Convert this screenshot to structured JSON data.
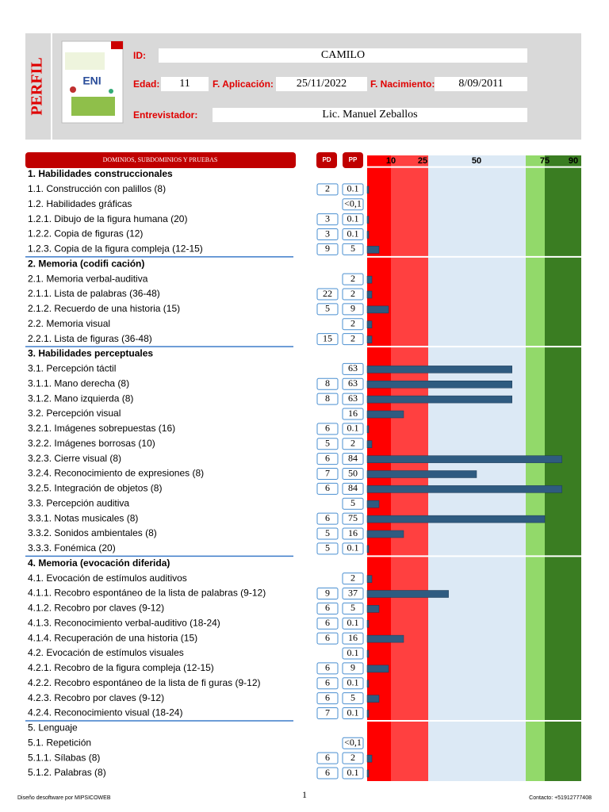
{
  "header": {
    "title": "PERFIL",
    "cover_title": "ENI",
    "id_label": "ID:",
    "id": "CAMILO",
    "age_label": "Edad:",
    "age": 11,
    "application_label": "F. Aplicación:",
    "application_date": "25/11/2022",
    "birth_label": "F. Nacimiento:",
    "birth_date": "8/09/2011",
    "interviewer_label": "Entrevistador:",
    "interviewer": "Lic. Manuel Zeballos"
  },
  "table": {
    "column_label": "DOMINIOS, SUBDOMINIOS Y PRUEBAS",
    "pd_label": "PD",
    "pp_label": "PP",
    "xlim": [
      0,
      100
    ],
    "xticks": [
      10,
      25,
      50,
      75,
      90
    ],
    "bar_color": "#2f5b80",
    "rows": [
      {
        "label": "1. Habilidades construccionales",
        "section": true,
        "bold": true
      },
      {
        "label": "1.1. Construcción con palillos (8)",
        "pd": 2,
        "pp": 0.1
      },
      {
        "label": "1.2. Habilidades gráficas",
        "pp": "<0,1"
      },
      {
        "label": "1.2.1. Dibujo de la figura humana (20)",
        "pd": 3,
        "pp": 0.1
      },
      {
        "label": "1.2.2. Copia de figuras (12)",
        "pd": 3,
        "pp": 0.1
      },
      {
        "label": "1.2.3. Copia de la figura compleja (12-15)",
        "pd": 9,
        "pp": 5
      },
      {
        "label": "2. Memoria (codifi cación)",
        "section": true,
        "bold": true
      },
      {
        "label": "2.1. Memoria verbal-auditiva",
        "pp": 2
      },
      {
        "label": "2.1.1. Lista de palabras (36-48)",
        "pd": 22,
        "pp": 2
      },
      {
        "label": "2.1.2. Recuerdo de una historia (15)",
        "pd": 5,
        "pp": 9
      },
      {
        "label": "2.2. Memoria visual",
        "pp": 2
      },
      {
        "label": "2.2.1. Lista de figuras (36-48)",
        "pd": 15,
        "pp": 2
      },
      {
        "label": "3. Habilidades perceptuales",
        "section": true,
        "bold": true
      },
      {
        "label": "3.1. Percepción táctil",
        "pp": 63
      },
      {
        "label": "3.1.1. Mano derecha (8)",
        "pd": 8,
        "pp": 63
      },
      {
        "label": "3.1.2. Mano izquierda (8)",
        "pd": 8,
        "pp": 63
      },
      {
        "label": "3.2. Percepción visual",
        "pp": 16
      },
      {
        "label": "3.2.1. Imágenes sobrepuestas (16)",
        "pd": 6,
        "pp": 0.1
      },
      {
        "label": "3.2.2. Imágenes borrosas (10)",
        "pd": 5,
        "pp": 2
      },
      {
        "label": "3.2.3. Cierre visual (8)",
        "pd": 6,
        "pp": 84
      },
      {
        "label": "3.2.4. Reconocimiento de expresiones (8)",
        "pd": 7,
        "pp": 50
      },
      {
        "label": "3.2.5. Integración de objetos (8)",
        "pd": 6,
        "pp": 84
      },
      {
        "label": "3.3. Percepción auditiva",
        "pp": 5
      },
      {
        "label": "3.3.1. Notas musicales (8)",
        "pd": 6,
        "pp": 75
      },
      {
        "label": "3.3.2. Sonidos ambientales (8)",
        "pd": 5,
        "pp": 16
      },
      {
        "label": "3.3.3. Fonémica (20)",
        "pd": 5,
        "pp": 0.1
      },
      {
        "label": "4. Memoria (evocación diferida)",
        "section": true,
        "bold": true
      },
      {
        "label": "4.1. Evocación de estímulos auditivos",
        "pp": 2
      },
      {
        "label": "4.1.1. Recobro espontáneo de la lista de palabras (9-12)",
        "pd": 9,
        "pp": 37
      },
      {
        "label": "4.1.2. Recobro por claves (9-12)",
        "pd": 6,
        "pp": 5
      },
      {
        "label": "4.1.3. Reconocimiento verbal-auditivo (18-24)",
        "pd": 6,
        "pp": 0.1
      },
      {
        "label": "4.1.4. Recuperación de una historia (15)",
        "pd": 6,
        "pp": 16
      },
      {
        "label": "4.2. Evocación de estímulos visuales",
        "pp": 0.1
      },
      {
        "label": "4.2.1. Recobro de la figura compleja (12-15)",
        "pd": 6,
        "pp": 9
      },
      {
        "label": "4.2.2. Recobro espontáneo de la lista de fi guras (9-12)",
        "pd": 6,
        "pp": 0.1
      },
      {
        "label": "4.2.3. Recobro por claves (9-12)",
        "pd": 6,
        "pp": 5
      },
      {
        "label": "4.2.4. Reconocimiento visual (18-24)",
        "pd": 7,
        "pp": 0.1
      },
      {
        "label": "5. Lenguaje",
        "section": true,
        "bold": false
      },
      {
        "label": "5.1. Repetición",
        "pp": "<0,1"
      },
      {
        "label": "5.1.1. Sílabas (8)",
        "pd": 6,
        "pp": 2
      },
      {
        "label": "5.1.2. Palabras (8)",
        "pd": 6,
        "pp": 0.1
      }
    ]
  },
  "footer": {
    "left": "Diseño desoftware por MIPSICOWEB",
    "page": "1",
    "right": "Contacto: +51912777408"
  }
}
